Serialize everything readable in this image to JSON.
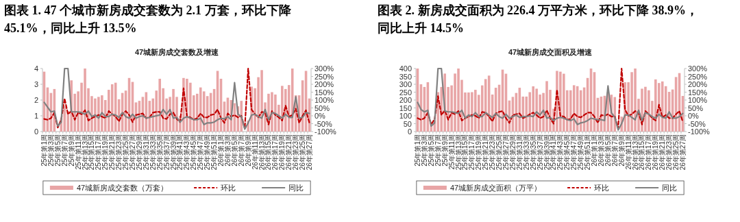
{
  "chart_data": [
    {
      "type": "bar",
      "title": "图表 1. 47 个城市新房成交套数为 2.1 万套，环比下降 45.1%，同比上升 13.5%",
      "subtitle": "47城新房成交套数及增速",
      "categories": [
        "25年第1周",
        null,
        "25年第3周",
        null,
        "25年第5周",
        null,
        "25年第7周",
        null,
        "25年第9周",
        null,
        "25年第11周",
        null,
        "25年第13周",
        null,
        "25年第15周",
        null,
        "25年第17周",
        null,
        "25年第19周",
        null,
        "25年第21周",
        null,
        "25年第23周",
        null,
        "25年第25周",
        null,
        "25年第27周",
        null,
        "25年第29周",
        null,
        "25年第31周",
        null,
        "25年第33周",
        null,
        "25年第35周",
        null,
        "25年第37周",
        null,
        "25年第39周",
        null,
        "25年第41周",
        null,
        "25年第43周",
        null,
        "25年第45周",
        null,
        "25年第47周",
        null,
        "25年第49周",
        null,
        "25年第51周",
        null,
        "26年第1周",
        null,
        "26年第3周",
        null,
        "26年第5周",
        null,
        "26年第7周",
        null,
        "26年第9周",
        null,
        "26年第11周",
        null,
        "26年第13周",
        null,
        "26年第15周",
        null,
        "26年第17周",
        null,
        "26年第19周",
        null,
        "26年第21周",
        null,
        "26年第23周",
        null,
        "26年第25周",
        null,
        "26年第27周"
      ],
      "series": [
        {
          "name": "47城新房成交套数（万套）",
          "color": "#e8a5a6",
          "values": [
            3.8,
            2.8,
            2.45,
            2.7,
            null,
            0.8,
            1.6,
            1.3,
            3.25,
            2.4,
            2.55,
            3.1,
            4.0,
            2.75,
            2.25,
            2.1,
            2.2,
            2.3,
            2.0,
            2.65,
            3.0,
            3.1,
            2.05,
            2.45,
            2.6,
            3.4,
            3.15,
            1.85,
            1.95,
            2.2,
            2.5,
            1.95,
            2.1,
            2.6,
            3.35,
            2.75,
            2.1,
            2.2,
            2.7,
            2.2,
            1.0,
            3.4,
            3.35,
            3.1,
            2.3,
            2.4,
            2.8,
            2.55,
            2.25,
            2.45,
            2.7,
            3.85,
            3.35,
            1.9,
            2.15,
            2.0,
            1.8,
            1.6,
            1.95,
            null,
            0.7,
            2.85,
            2.75,
            3.45,
            3.9,
            1.85,
            2.4,
            2.5,
            2.35,
            1.7,
            2.9,
            2.7,
            2.95,
            4.0,
            2.3,
            2.3,
            3.25,
            3.85,
            2.1
          ]
        },
        {
          "name": "环比",
          "type": "line",
          "axis": "y2",
          "line_style": "dashed",
          "color": "#c00000",
          "values": [
            -20,
            -25,
            -15,
            20,
            -75,
            -25,
            110,
            10,
            30,
            -25,
            20,
            10,
            35,
            -30,
            -15,
            -5,
            5,
            -5,
            -15,
            30,
            10,
            -5,
            -35,
            10,
            30,
            5,
            -40,
            5,
            10,
            15,
            -15,
            -10,
            20,
            25,
            25,
            -15,
            -20,
            10,
            20,
            -20,
            -40,
            175,
            -5,
            -10,
            -25,
            -15,
            15,
            -10,
            -10,
            5,
            10,
            40,
            -15,
            -45,
            15,
            -5,
            5,
            -10,
            0,
            -80,
            300,
            40,
            10,
            -10,
            25,
            20,
            -55,
            30,
            5,
            -10,
            -30,
            65,
            -5,
            5,
            45,
            -45,
            0,
            35,
            -45
          ]
        },
        {
          "name": "同比",
          "type": "line",
          "axis": "y2",
          "line_style": "solid",
          "color": "#808080",
          "values": [
            85,
            55,
            25,
            30,
            -65,
            -40,
            300,
            300,
            25,
            25,
            25,
            20,
            10,
            30,
            -5,
            5,
            -15,
            20,
            -5,
            -5,
            10,
            5,
            -10,
            20,
            -5,
            -15,
            10,
            -15,
            -5,
            0,
            -15,
            -10,
            -5,
            0,
            5,
            40,
            10,
            40,
            -15,
            -10,
            -40,
            -15,
            -5,
            -15,
            -25,
            -25,
            -15,
            -55,
            -45,
            -45,
            -40,
            -25,
            -15,
            -20,
            -5,
            -25,
            210,
            10,
            -5,
            -85,
            -45,
            5,
            10,
            -5,
            -15,
            40,
            -25,
            20,
            15,
            0,
            -15,
            10,
            -10,
            -10,
            120,
            -15,
            -10,
            20,
            15
          ]
        }
      ],
      "ylim": [
        0,
        4
      ],
      "yticks": [
        0,
        1,
        2,
        3,
        4
      ],
      "y2lim": [
        -100,
        300
      ],
      "y2ticks": [
        {
          "value": -100,
          "label": "-100%"
        },
        {
          "value": -50,
          "label": "-50%"
        },
        {
          "value": 0,
          "label": "0%"
        },
        {
          "value": 50,
          "label": "50%"
        },
        {
          "value": 100,
          "label": "100%"
        },
        {
          "value": 150,
          "label": "150%"
        },
        {
          "value": 200,
          "label": "200%"
        },
        {
          "value": 250,
          "label": "250%"
        },
        {
          "value": 300,
          "label": "300%"
        }
      ],
      "legend": "bottom"
    },
    {
      "type": "bar",
      "title": "图表 2. 新房成交面积为 226.4 万平方米，环比下降 38.9%，同比上升 14.5%",
      "subtitle": "47城新房成交面积及增速",
      "categories": [
        "25年第1周",
        null,
        "25年第3周",
        null,
        "25年第5周",
        null,
        "25年第7周",
        null,
        "25年第9周",
        null,
        "25年第11周",
        null,
        "25年第13周",
        null,
        "25年第15周",
        null,
        "25年第17周",
        null,
        "25年第19周",
        null,
        "25年第21周",
        null,
        "25年第23周",
        null,
        "25年第25周",
        null,
        "25年第27周",
        null,
        "25年第29周",
        null,
        "25年第31周",
        null,
        "25年第33周",
        null,
        "25年第35周",
        null,
        "25年第37周",
        null,
        "25年第39周",
        null,
        "25年第41周",
        null,
        "25年第43周",
        null,
        "25年第45周",
        null,
        "25年第47周",
        null,
        "25年第49周",
        null,
        "25年第51周",
        null,
        "26年第1周",
        null,
        "26年第3周",
        null,
        "26年第5周",
        null,
        "26年第7周",
        null,
        "26年第9周",
        null,
        "26年第11周",
        null,
        "26年第13周",
        null,
        "26年第15周",
        null,
        "26年第17周",
        null,
        "26年第19周",
        null,
        "26年第21周",
        null,
        "26年第23周",
        null,
        "26年第25周",
        null,
        "26年第27周"
      ],
      "series": [
        {
          "name": "47城新房成交面积（万平）",
          "color": "#e8a5a6",
          "values": [
            400,
            300,
            283,
            313,
            50,
            70,
            250,
            283,
            368,
            283,
            293,
            368,
            400,
            328,
            248,
            248,
            250,
            265,
            233,
            293,
            333,
            355,
            235,
            278,
            297,
            393,
            367,
            197,
            220,
            245,
            278,
            222,
            222,
            250,
            287,
            272,
            235,
            245,
            320,
            265,
            145,
            385,
            380,
            367,
            262,
            262,
            294,
            288,
            262,
            280,
            340,
            400,
            377,
            214,
            222,
            227,
            250,
            234,
            219,
            null,
            95,
            313,
            313,
            377,
            400,
            208,
            272,
            284,
            262,
            195,
            331,
            308,
            318,
            288,
            252,
            267,
            346,
            371,
            226
          ]
        },
        {
          "name": "环比",
          "type": "line",
          "axis": "y2",
          "line_style": "dashed",
          "color": "#c00000",
          "values": [
            -15,
            -25,
            -15,
            20,
            -55,
            -20,
            125,
            5,
            35,
            -25,
            20,
            10,
            30,
            -30,
            -15,
            -5,
            5,
            0,
            -15,
            25,
            20,
            -5,
            -35,
            15,
            25,
            30,
            -15,
            -45,
            5,
            10,
            15,
            -15,
            -5,
            10,
            20,
            5,
            -15,
            -5,
            35,
            -15,
            -50,
            165,
            0,
            -5,
            -25,
            -20,
            15,
            -5,
            -10,
            5,
            20,
            20,
            -5,
            -45,
            5,
            0,
            10,
            -5,
            -5,
            -80,
            300,
            40,
            0,
            10,
            30,
            20,
            -55,
            30,
            10,
            -15,
            -30,
            70,
            -10,
            5,
            -15,
            -15,
            10,
            30,
            -39
          ]
        },
        {
          "name": "同比",
          "type": "line",
          "axis": "y2",
          "line_style": "solid",
          "color": "#808080",
          "values": [
            85,
            40,
            25,
            35,
            -65,
            -45,
            300,
            300,
            30,
            25,
            25,
            20,
            15,
            35,
            -15,
            5,
            -5,
            20,
            -5,
            -5,
            20,
            5,
            -10,
            15,
            -5,
            -15,
            10,
            -15,
            -5,
            5,
            -10,
            -5,
            -5,
            0,
            -5,
            25,
            5,
            35,
            -15,
            -10,
            -30,
            -15,
            -10,
            -15,
            -25,
            -30,
            -20,
            -55,
            -45,
            -40,
            -30,
            -15,
            -20,
            -25,
            -25,
            -30,
            190,
            20,
            -10,
            -90,
            -50,
            5,
            5,
            -10,
            -25,
            35,
            -30,
            20,
            10,
            -5,
            -15,
            10,
            -10,
            -15,
            25,
            -15,
            -15,
            -5,
            15
          ]
        }
      ],
      "ylim": [
        0,
        400
      ],
      "yticks": [
        0,
        50,
        100,
        150,
        200,
        250,
        300,
        350,
        400
      ],
      "y2lim": [
        -100,
        300
      ],
      "y2ticks": [
        {
          "value": -100,
          "label": "-100%"
        },
        {
          "value": -50,
          "label": "-50%"
        },
        {
          "value": 0,
          "label": "0%"
        },
        {
          "value": 50,
          "label": "50%"
        },
        {
          "value": 100,
          "label": "100%"
        },
        {
          "value": 150,
          "label": "150%"
        },
        {
          "value": 200,
          "label": "200%"
        },
        {
          "value": 250,
          "label": "250%"
        },
        {
          "value": 300,
          "label": "300%"
        }
      ],
      "legend": "bottom"
    }
  ]
}
